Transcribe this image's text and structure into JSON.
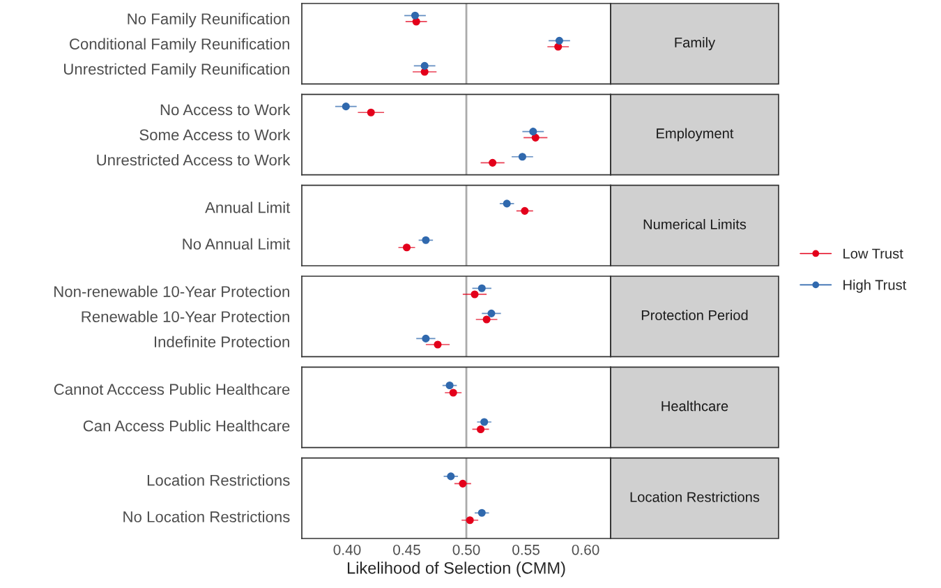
{
  "chart_data": [
    {
      "type": "scatter",
      "orientation": "horizontal",
      "annotations": [
        "Family"
      ],
      "categories": [
        "No Family Reunification",
        "Conditional Family Reunification",
        "Unrestricted Family Reunification"
      ],
      "series": [
        {
          "name": "Low Trust",
          "color": "#e3001b",
          "values": [
            0.458,
            0.577,
            0.465
          ],
          "errors": [
            0.009,
            0.009,
            0.01
          ]
        },
        {
          "name": "High Trust",
          "color": "#3069ae",
          "values": [
            0.457,
            0.578,
            0.465
          ],
          "errors": [
            0.009,
            0.009,
            0.009
          ]
        }
      ],
      "xlim": [
        0.362,
        0.621
      ],
      "ref_lines": [
        {
          "axis": "x",
          "value": 0.5,
          "color": "#aaaaaa"
        }
      ],
      "marker": "circle",
      "tick_labels": "y",
      "legend": "right"
    },
    {
      "type": "scatter",
      "orientation": "horizontal",
      "annotations": [
        "Employment"
      ],
      "categories": [
        "No Access to Work",
        "Some Access to Work",
        "Unrestricted Access to Work"
      ],
      "series": [
        {
          "color": "#e3001b",
          "values": [
            0.42,
            0.558,
            0.522
          ],
          "errors": [
            0.011,
            0.01,
            0.01
          ]
        },
        {
          "color": "#3069ae",
          "values": [
            0.399,
            0.556,
            0.547
          ],
          "errors": [
            0.009,
            0.009,
            0.009
          ]
        }
      ],
      "xlim": [
        0.362,
        0.621
      ],
      "ref_lines": [
        {
          "axis": "x",
          "value": 0.5,
          "color": "#aaaaaa"
        }
      ],
      "marker": "circle",
      "tick_labels": "y"
    },
    {
      "type": "scatter",
      "orientation": "horizontal",
      "annotations": [
        "Numerical Limits"
      ],
      "categories": [
        "Annual Limit",
        "No Annual Limit"
      ],
      "series": [
        {
          "color": "#e3001b",
          "values": [
            0.549,
            0.45
          ],
          "errors": [
            0.007,
            0.007
          ]
        },
        {
          "color": "#3069ae",
          "values": [
            0.534,
            0.466
          ],
          "errors": [
            0.006,
            0.006
          ]
        }
      ],
      "xlim": [
        0.362,
        0.621
      ],
      "ref_lines": [
        {
          "axis": "x",
          "value": 0.5,
          "color": "#aaaaaa"
        }
      ],
      "marker": "circle",
      "tick_labels": "y"
    },
    {
      "type": "scatter",
      "orientation": "horizontal",
      "annotations": [
        "Protection Period"
      ],
      "categories": [
        "Non-renewable 10-Year Protection",
        "Renewable 10-Year Protection",
        "Indefinite Protection"
      ],
      "series": [
        {
          "color": "#e3001b",
          "values": [
            0.507,
            0.517,
            0.476
          ],
          "errors": [
            0.01,
            0.009,
            0.01
          ]
        },
        {
          "color": "#3069ae",
          "values": [
            0.513,
            0.521,
            0.466
          ],
          "errors": [
            0.008,
            0.008,
            0.008
          ]
        }
      ],
      "xlim": [
        0.362,
        0.621
      ],
      "ref_lines": [
        {
          "axis": "x",
          "value": 0.5,
          "color": "#aaaaaa"
        }
      ],
      "marker": "circle",
      "tick_labels": "y"
    },
    {
      "type": "scatter",
      "orientation": "horizontal",
      "annotations": [
        "Healthcare"
      ],
      "categories": [
        "Cannot Acccess Public Healthcare",
        "Can Access Public Healthcare"
      ],
      "series": [
        {
          "color": "#e3001b",
          "values": [
            0.489,
            0.512
          ],
          "errors": [
            0.007,
            0.007
          ]
        },
        {
          "color": "#3069ae",
          "values": [
            0.486,
            0.515
          ],
          "errors": [
            0.006,
            0.006
          ]
        }
      ],
      "xlim": [
        0.362,
        0.621
      ],
      "ref_lines": [
        {
          "axis": "x",
          "value": 0.5,
          "color": "#aaaaaa"
        }
      ],
      "marker": "circle",
      "tick_labels": "y"
    },
    {
      "type": "scatter",
      "orientation": "horizontal",
      "annotations": [
        "Location Restrictions"
      ],
      "xlabel": "Likelihood of Selection (CMM)",
      "categories": [
        "Location Restrictions",
        "No Location Restrictions"
      ],
      "series": [
        {
          "color": "#e3001b",
          "values": [
            0.497,
            0.503
          ],
          "errors": [
            0.007,
            0.007
          ]
        },
        {
          "color": "#3069ae",
          "values": [
            0.487,
            0.513
          ],
          "errors": [
            0.006,
            0.006
          ]
        }
      ],
      "xlim": [
        0.362,
        0.621
      ],
      "xticks": [
        {
          "value": 0.4,
          "label": "0.40"
        },
        {
          "value": 0.45,
          "label": "0.45"
        },
        {
          "value": 0.5,
          "label": "0.50"
        },
        {
          "value": 0.55,
          "label": "0.55"
        },
        {
          "value": 0.6,
          "label": "0.60"
        }
      ],
      "ref_lines": [
        {
          "axis": "x",
          "value": 0.5,
          "color": "#aaaaaa"
        }
      ],
      "marker": "circle"
    }
  ]
}
